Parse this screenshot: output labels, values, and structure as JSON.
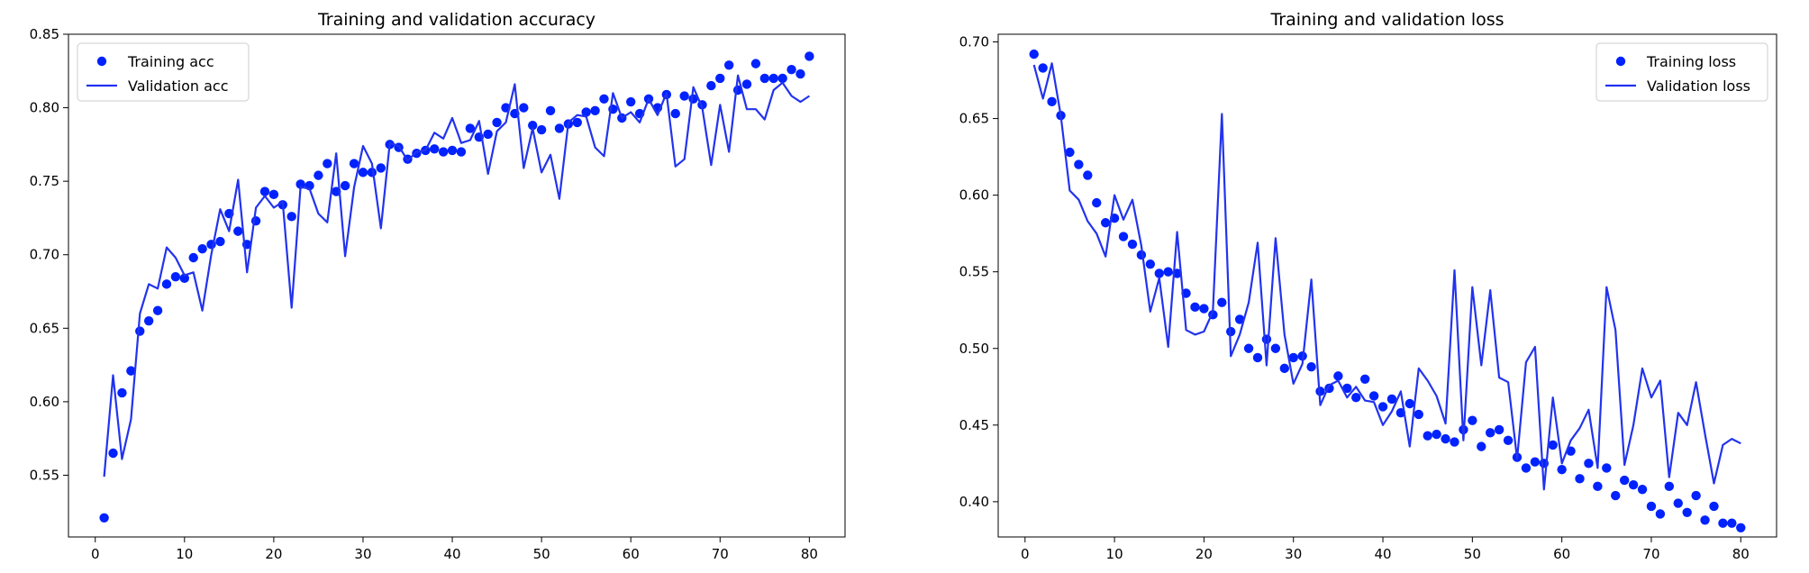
{
  "chart_data": [
    {
      "type": "line",
      "title": "Training and validation accuracy",
      "xlabel": "",
      "ylabel": "",
      "xlim": [
        -3,
        84
      ],
      "ylim": [
        0.508,
        0.85
      ],
      "xticks": [
        0,
        10,
        20,
        30,
        40,
        50,
        60,
        70,
        80
      ],
      "yticks": [
        0.55,
        0.6,
        0.65,
        0.7,
        0.75,
        0.8,
        0.85
      ],
      "grid": false,
      "legend_position": "top-left",
      "series": [
        {
          "name": "Training acc",
          "style": "points",
          "color": "#0022ff",
          "x": [
            1,
            2,
            3,
            4,
            5,
            6,
            7,
            8,
            9,
            10,
            11,
            12,
            13,
            14,
            15,
            16,
            17,
            18,
            19,
            20,
            21,
            22,
            23,
            24,
            25,
            26,
            27,
            28,
            29,
            30,
            31,
            32,
            33,
            34,
            35,
            36,
            37,
            38,
            39,
            40,
            41,
            42,
            43,
            44,
            45,
            46,
            47,
            48,
            49,
            50,
            51,
            52,
            53,
            54,
            55,
            56,
            57,
            58,
            59,
            60,
            61,
            62,
            63,
            64,
            65,
            66,
            67,
            68,
            69,
            70,
            71,
            72,
            73,
            74,
            75,
            76,
            77,
            78,
            79,
            80
          ],
          "values": [
            0.521,
            0.565,
            0.606,
            0.621,
            0.648,
            0.655,
            0.662,
            0.68,
            0.685,
            0.684,
            0.698,
            0.704,
            0.707,
            0.709,
            0.728,
            0.716,
            0.707,
            0.723,
            0.743,
            0.741,
            0.734,
            0.726,
            0.748,
            0.747,
            0.754,
            0.762,
            0.743,
            0.747,
            0.762,
            0.756,
            0.756,
            0.759,
            0.775,
            0.773,
            0.765,
            0.769,
            0.771,
            0.772,
            0.77,
            0.771,
            0.77,
            0.786,
            0.78,
            0.782,
            0.79,
            0.8,
            0.796,
            0.8,
            0.788,
            0.785,
            0.798,
            0.786,
            0.789,
            0.79,
            0.797,
            0.798,
            0.806,
            0.799,
            0.793,
            0.804,
            0.796,
            0.806,
            0.8,
            0.809,
            0.796,
            0.808,
            0.806,
            0.802,
            0.815,
            0.82,
            0.829,
            0.812,
            0.816,
            0.83,
            0.82,
            0.82,
            0.82,
            0.826,
            0.823,
            0.835
          ]
        },
        {
          "name": "Validation acc",
          "style": "line",
          "color": "#2233ee",
          "x": [
            1,
            2,
            3,
            4,
            5,
            6,
            7,
            8,
            9,
            10,
            11,
            12,
            13,
            14,
            15,
            16,
            17,
            18,
            19,
            20,
            21,
            22,
            23,
            24,
            25,
            26,
            27,
            28,
            29,
            30,
            31,
            32,
            33,
            34,
            35,
            36,
            37,
            38,
            39,
            40,
            41,
            42,
            43,
            44,
            45,
            46,
            47,
            48,
            49,
            50,
            51,
            52,
            53,
            54,
            55,
            56,
            57,
            58,
            59,
            60,
            61,
            62,
            63,
            64,
            65,
            66,
            67,
            68,
            69,
            70,
            71,
            72,
            73,
            74,
            75,
            76,
            77,
            78,
            79,
            80
          ],
          "values": [
            0.549,
            0.618,
            0.561,
            0.588,
            0.66,
            0.68,
            0.677,
            0.705,
            0.698,
            0.686,
            0.688,
            0.662,
            0.7,
            0.731,
            0.716,
            0.751,
            0.688,
            0.732,
            0.74,
            0.732,
            0.736,
            0.664,
            0.746,
            0.745,
            0.728,
            0.722,
            0.769,
            0.699,
            0.746,
            0.774,
            0.762,
            0.718,
            0.776,
            0.774,
            0.764,
            0.77,
            0.771,
            0.783,
            0.779,
            0.793,
            0.776,
            0.778,
            0.791,
            0.755,
            0.784,
            0.79,
            0.816,
            0.759,
            0.786,
            0.756,
            0.768,
            0.738,
            0.79,
            0.795,
            0.794,
            0.773,
            0.767,
            0.81,
            0.793,
            0.797,
            0.79,
            0.806,
            0.795,
            0.81,
            0.76,
            0.765,
            0.814,
            0.8,
            0.761,
            0.802,
            0.77,
            0.822,
            0.799,
            0.799,
            0.792,
            0.812,
            0.817,
            0.808,
            0.804,
            0.808
          ]
        }
      ]
    },
    {
      "type": "line",
      "title": "Training and validation loss",
      "xlabel": "",
      "ylabel": "",
      "xlim": [
        -3,
        84
      ],
      "ylim": [
        0.377,
        0.705
      ],
      "xticks": [
        0,
        10,
        20,
        30,
        40,
        50,
        60,
        70,
        80
      ],
      "yticks": [
        0.4,
        0.45,
        0.5,
        0.55,
        0.6,
        0.65,
        0.7
      ],
      "grid": false,
      "legend_position": "top-right",
      "series": [
        {
          "name": "Training loss",
          "style": "points",
          "color": "#0022ff",
          "x": [
            1,
            2,
            3,
            4,
            5,
            6,
            7,
            8,
            9,
            10,
            11,
            12,
            13,
            14,
            15,
            16,
            17,
            18,
            19,
            20,
            21,
            22,
            23,
            24,
            25,
            26,
            27,
            28,
            29,
            30,
            31,
            32,
            33,
            34,
            35,
            36,
            37,
            38,
            39,
            40,
            41,
            42,
            43,
            44,
            45,
            46,
            47,
            48,
            49,
            50,
            51,
            52,
            53,
            54,
            55,
            56,
            57,
            58,
            59,
            60,
            61,
            62,
            63,
            64,
            65,
            66,
            67,
            68,
            69,
            70,
            71,
            72,
            73,
            74,
            75,
            76,
            77,
            78,
            79,
            80
          ],
          "values": [
            0.692,
            0.683,
            0.661,
            0.652,
            0.628,
            0.62,
            0.613,
            0.595,
            0.582,
            0.585,
            0.573,
            0.568,
            0.561,
            0.555,
            0.549,
            0.55,
            0.549,
            0.536,
            0.527,
            0.526,
            0.522,
            0.53,
            0.511,
            0.519,
            0.5,
            0.494,
            0.506,
            0.5,
            0.487,
            0.494,
            0.495,
            0.488,
            0.472,
            0.474,
            0.482,
            0.474,
            0.468,
            0.48,
            0.469,
            0.462,
            0.467,
            0.458,
            0.464,
            0.457,
            0.443,
            0.444,
            0.441,
            0.439,
            0.447,
            0.453,
            0.436,
            0.445,
            0.447,
            0.44,
            0.429,
            0.422,
            0.426,
            0.425,
            0.437,
            0.421,
            0.433,
            0.415,
            0.425,
            0.41,
            0.422,
            0.404,
            0.414,
            0.411,
            0.408,
            0.397,
            0.392,
            0.41,
            0.399,
            0.393,
            0.404,
            0.388,
            0.397,
            0.386,
            0.386,
            0.383
          ]
        },
        {
          "name": "Validation loss",
          "style": "line",
          "color": "#2233ee",
          "x": [
            1,
            2,
            3,
            4,
            5,
            6,
            7,
            8,
            9,
            10,
            11,
            12,
            13,
            14,
            15,
            16,
            17,
            18,
            19,
            20,
            21,
            22,
            23,
            24,
            25,
            26,
            27,
            28,
            29,
            30,
            31,
            32,
            33,
            34,
            35,
            36,
            37,
            38,
            39,
            40,
            41,
            42,
            43,
            44,
            45,
            46,
            47,
            48,
            49,
            50,
            51,
            52,
            53,
            54,
            55,
            56,
            57,
            58,
            59,
            60,
            61,
            62,
            63,
            64,
            65,
            66,
            67,
            68,
            69,
            70,
            71,
            72,
            73,
            74,
            75,
            76,
            77,
            78,
            79,
            80
          ],
          "values": [
            0.685,
            0.663,
            0.686,
            0.652,
            0.603,
            0.597,
            0.583,
            0.575,
            0.56,
            0.6,
            0.584,
            0.597,
            0.567,
            0.524,
            0.546,
            0.501,
            0.576,
            0.512,
            0.509,
            0.511,
            0.524,
            0.653,
            0.495,
            0.509,
            0.53,
            0.569,
            0.489,
            0.572,
            0.509,
            0.477,
            0.49,
            0.545,
            0.463,
            0.476,
            0.479,
            0.468,
            0.475,
            0.466,
            0.465,
            0.45,
            0.459,
            0.472,
            0.436,
            0.487,
            0.479,
            0.469,
            0.451,
            0.551,
            0.44,
            0.54,
            0.489,
            0.538,
            0.481,
            0.478,
            0.428,
            0.491,
            0.501,
            0.408,
            0.468,
            0.425,
            0.44,
            0.448,
            0.46,
            0.422,
            0.54,
            0.512,
            0.424,
            0.45,
            0.487,
            0.468,
            0.479,
            0.416,
            0.458,
            0.45,
            0.478,
            0.444,
            0.412,
            0.437,
            0.441,
            0.438
          ]
        }
      ]
    }
  ]
}
